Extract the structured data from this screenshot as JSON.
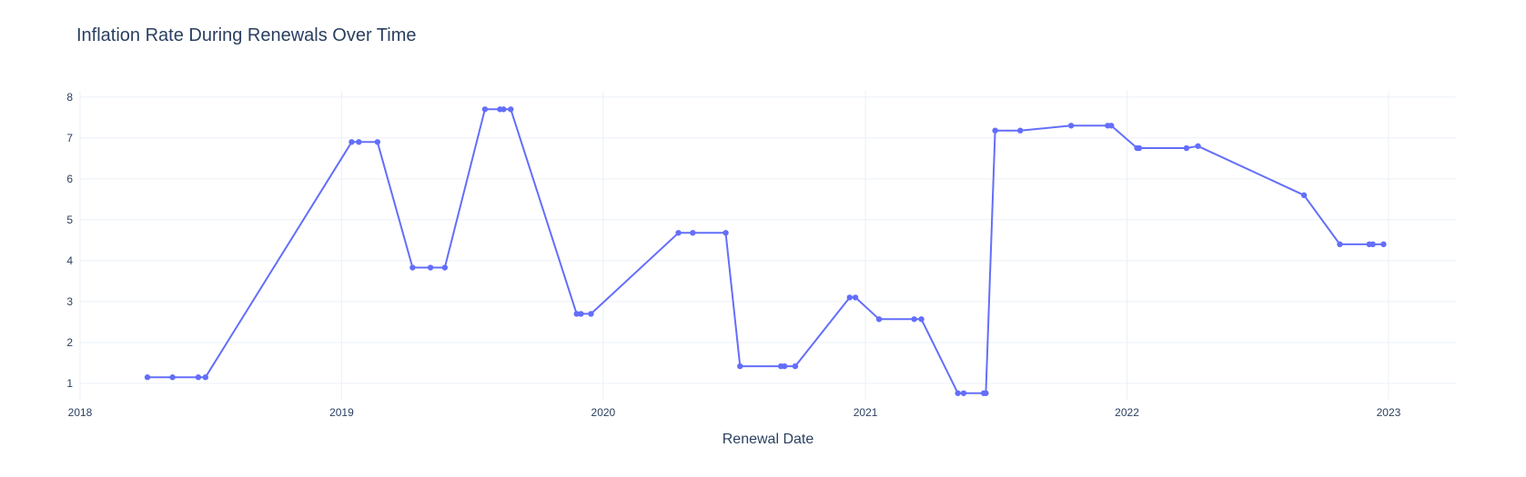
{
  "chart_data": {
    "type": "line",
    "title": "Inflation Rate During Renewals Over Time",
    "xlabel": "Renewal Date",
    "ylabel": "",
    "x_tick_labels": [
      "2018",
      "2019",
      "2020",
      "2021",
      "2022",
      "2023"
    ],
    "y_tick_labels": [
      "1",
      "2",
      "3",
      "4",
      "5",
      "6",
      "7",
      "8"
    ],
    "xlim": [
      "2018-01-01",
      "2023-04-05"
    ],
    "ylim": [
      0.6,
      8.15
    ],
    "grid": true,
    "line_color": "#636efa",
    "markers": true,
    "x": [
      "2018-04-05",
      "2018-05-10",
      "2018-06-15",
      "2018-06-25",
      "2019-01-15",
      "2019-01-25",
      "2019-02-20",
      "2019-04-10",
      "2019-05-05",
      "2019-05-25",
      "2019-07-20",
      "2019-08-10",
      "2019-08-15",
      "2019-08-25",
      "2019-11-25",
      "2019-12-01",
      "2019-12-15",
      "2020-04-15",
      "2020-05-05",
      "2020-06-20",
      "2020-07-10",
      "2020-09-05",
      "2020-09-10",
      "2020-09-25",
      "2020-12-10",
      "2020-12-18",
      "2021-01-20",
      "2021-03-10",
      "2021-03-20",
      "2021-05-10",
      "2021-05-18",
      "2021-06-15",
      "2021-06-18",
      "2021-07-01",
      "2021-08-05",
      "2021-10-15",
      "2021-12-05",
      "2021-12-10",
      "2022-01-15",
      "2022-01-18",
      "2022-03-25",
      "2022-04-10",
      "2022-09-05",
      "2022-10-25",
      "2022-12-05",
      "2022-12-10",
      "2022-12-25"
    ],
    "y": [
      1.15,
      1.15,
      1.15,
      1.15,
      6.9,
      6.9,
      6.9,
      3.83,
      3.83,
      3.83,
      7.7,
      7.7,
      7.7,
      7.7,
      2.7,
      2.7,
      2.7,
      4.68,
      4.68,
      4.68,
      1.42,
      1.42,
      1.42,
      1.42,
      3.1,
      3.1,
      2.57,
      2.57,
      2.57,
      0.76,
      0.76,
      0.76,
      0.76,
      7.18,
      7.18,
      7.3,
      7.3,
      7.3,
      6.75,
      6.75,
      6.75,
      6.8,
      5.6,
      4.4,
      4.4,
      4.4,
      4.4
    ]
  }
}
